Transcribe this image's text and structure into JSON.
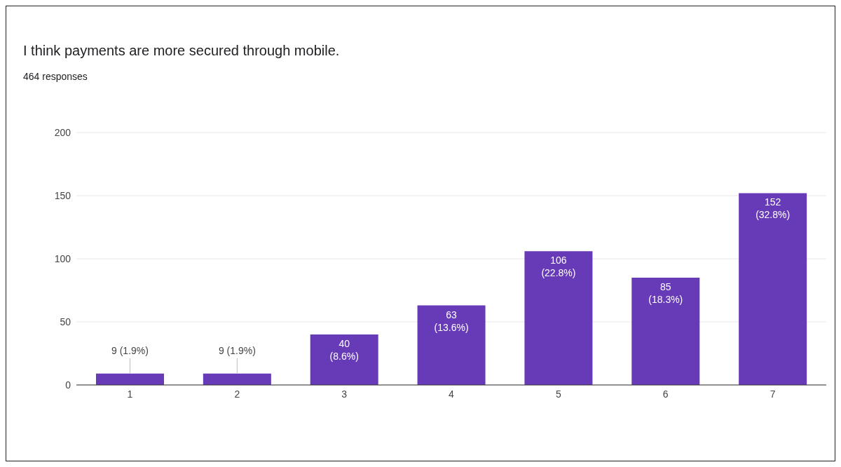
{
  "chart_data": {
    "type": "bar",
    "title": "I think payments are more secured through mobile.",
    "subtitle": "464 responses",
    "categories": [
      "1",
      "2",
      "3",
      "4",
      "5",
      "6",
      "7"
    ],
    "values": [
      9,
      9,
      40,
      63,
      106,
      85,
      152
    ],
    "value_labels": [
      "9 (1.9%)",
      "9 (1.9%)",
      "40 (8.6%)",
      "63 (13.6%)",
      "106 (22.8%)",
      "85 (18.3%)",
      "152 (32.8%)"
    ],
    "color": "#673ab7",
    "ylim": [
      0,
      200
    ],
    "yticks": [
      0,
      50,
      100,
      150,
      200
    ],
    "grid": "y",
    "legend": false
  }
}
